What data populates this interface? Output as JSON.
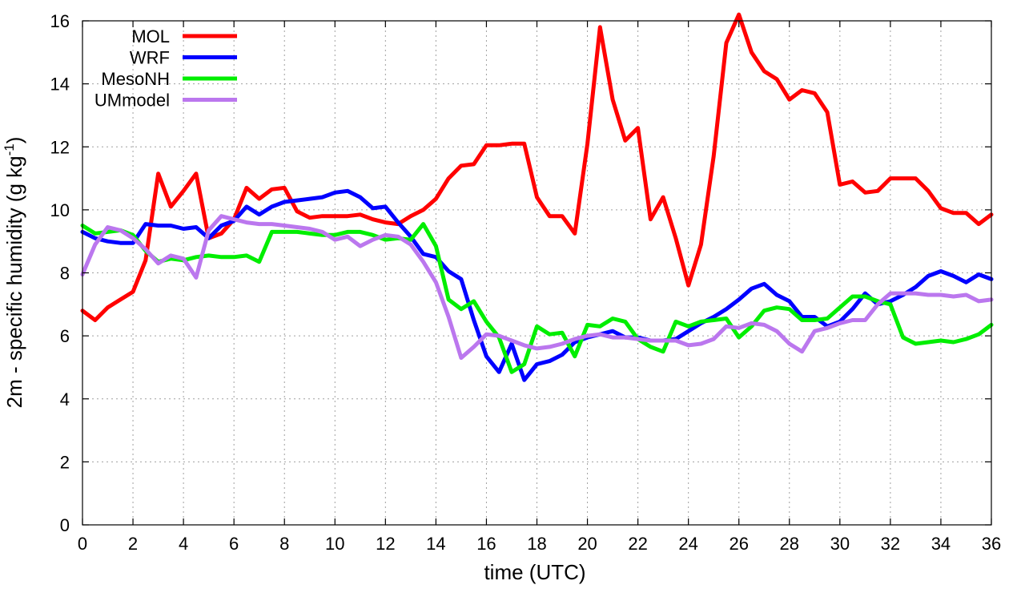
{
  "chart_data": {
    "type": "line",
    "xlabel": "time (UTC)",
    "ylabel_main": "2m - specific humidity (g kg",
    "ylabel_sup": "-1",
    "ylabel_close": ")",
    "xlim": [
      0,
      36
    ],
    "ylim": [
      0,
      16
    ],
    "xticks": [
      0,
      2,
      4,
      6,
      8,
      10,
      12,
      14,
      16,
      18,
      20,
      22,
      24,
      26,
      28,
      30,
      32,
      34,
      36
    ],
    "yticks": [
      0,
      2,
      4,
      6,
      8,
      10,
      12,
      14,
      16
    ],
    "grid": true,
    "legend_position": "top-left",
    "series": [
      {
        "name": "MOL",
        "color": "#ff0000",
        "x": [
          0,
          0.5,
          1,
          1.5,
          2,
          2.5,
          3,
          3.5,
          4,
          4.5,
          5,
          5.5,
          6,
          6.5,
          7,
          7.5,
          8,
          8.5,
          9,
          9.5,
          10,
          10.5,
          11,
          11.5,
          12,
          12.5,
          13,
          13.5,
          14,
          14.5,
          15,
          15.5,
          16,
          16.5,
          17,
          17.5,
          18,
          18.5,
          19,
          19.5,
          20,
          20.5,
          21,
          21.5,
          22,
          22.5,
          23,
          23.5,
          24,
          24.5,
          25,
          25.5,
          26,
          26.5,
          27,
          27.5,
          28,
          28.5,
          29,
          29.5,
          30,
          30.5,
          31,
          31.5,
          32,
          32.5,
          33,
          33.5,
          34,
          34.5,
          35,
          35.5,
          36
        ],
        "y": [
          6.8,
          6.5,
          6.9,
          7.15,
          7.4,
          8.4,
          11.15,
          10.1,
          10.6,
          11.15,
          9.1,
          9.25,
          9.7,
          10.7,
          10.35,
          10.65,
          10.7,
          9.95,
          9.75,
          9.8,
          9.8,
          9.8,
          9.85,
          9.7,
          9.6,
          9.55,
          9.8,
          10.0,
          10.35,
          11.0,
          11.4,
          11.45,
          12.05,
          12.05,
          12.1,
          12.1,
          10.4,
          9.8,
          9.8,
          9.25,
          12.1,
          15.8,
          13.5,
          12.2,
          12.6,
          9.7,
          10.4,
          9.1,
          7.6,
          8.9,
          11.7,
          15.3,
          16.2,
          15.0,
          14.4,
          14.15,
          13.5,
          13.8,
          13.7,
          13.1,
          10.8,
          10.9,
          10.55,
          10.6,
          11.0,
          11.0,
          11.0,
          10.6,
          10.05,
          9.9,
          9.9,
          9.55,
          9.85
        ]
      },
      {
        "name": "WRF",
        "color": "#0000ff",
        "x": [
          0,
          0.5,
          1,
          1.5,
          2,
          2.5,
          3,
          3.5,
          4,
          4.5,
          5,
          5.5,
          6,
          6.5,
          7,
          7.5,
          8,
          8.5,
          9,
          9.5,
          10,
          10.5,
          11,
          11.5,
          12,
          12.5,
          13,
          13.5,
          14,
          14.5,
          15,
          15.5,
          16,
          16.5,
          17,
          17.5,
          18,
          18.5,
          19,
          19.5,
          20,
          20.5,
          21,
          21.5,
          22,
          22.5,
          23,
          23.5,
          24,
          24.5,
          25,
          25.5,
          26,
          26.5,
          27,
          27.5,
          28,
          28.5,
          29,
          29.5,
          30,
          30.5,
          31,
          31.5,
          32,
          32.5,
          33,
          33.5,
          34,
          34.5,
          35,
          35.5,
          36
        ],
        "y": [
          9.3,
          9.1,
          9.0,
          8.95,
          8.95,
          9.55,
          9.5,
          9.5,
          9.4,
          9.45,
          9.1,
          9.5,
          9.65,
          10.1,
          9.85,
          10.1,
          10.25,
          10.3,
          10.35,
          10.4,
          10.55,
          10.6,
          10.4,
          10.05,
          10.1,
          9.6,
          9.15,
          8.6,
          8.5,
          8.05,
          7.8,
          6.5,
          5.35,
          4.85,
          5.75,
          4.6,
          5.1,
          5.2,
          5.4,
          5.8,
          5.95,
          6.05,
          6.15,
          5.95,
          5.95,
          5.85,
          5.85,
          5.9,
          6.15,
          6.4,
          6.6,
          6.85,
          7.15,
          7.5,
          7.65,
          7.3,
          7.1,
          6.6,
          6.6,
          6.3,
          6.45,
          6.85,
          7.35,
          7.0,
          7.1,
          7.3,
          7.55,
          7.9,
          8.05,
          7.9,
          7.7,
          7.95,
          7.8
        ]
      },
      {
        "name": "MesoNH",
        "color": "#00ee00",
        "x": [
          0,
          0.5,
          1,
          1.5,
          2,
          2.5,
          3,
          3.5,
          4,
          4.5,
          5,
          5.5,
          6,
          6.5,
          7,
          7.5,
          8,
          8.5,
          9,
          9.5,
          10,
          10.5,
          11,
          11.5,
          12,
          12.5,
          13,
          13.5,
          14,
          14.5,
          15,
          15.5,
          16,
          16.5,
          17,
          17.5,
          18,
          18.5,
          19,
          19.5,
          20,
          20.5,
          21,
          21.5,
          22,
          22.5,
          23,
          23.5,
          24,
          24.5,
          25,
          25.5,
          26,
          26.5,
          27,
          27.5,
          28,
          28.5,
          29,
          29.5,
          30,
          30.5,
          31,
          31.5,
          32,
          32.5,
          33,
          33.5,
          34,
          34.5,
          35,
          35.5,
          36
        ],
        "y": [
          9.5,
          9.25,
          9.3,
          9.35,
          9.2,
          8.7,
          8.35,
          8.45,
          8.4,
          8.5,
          8.55,
          8.5,
          8.5,
          8.55,
          8.35,
          9.3,
          9.3,
          9.3,
          9.25,
          9.2,
          9.2,
          9.3,
          9.3,
          9.2,
          9.05,
          9.1,
          9.05,
          9.55,
          8.85,
          7.15,
          6.85,
          7.1,
          6.45,
          5.95,
          4.85,
          5.1,
          6.3,
          6.05,
          6.1,
          5.35,
          6.35,
          6.3,
          6.55,
          6.45,
          5.9,
          5.65,
          5.5,
          6.45,
          6.3,
          6.45,
          6.5,
          6.55,
          5.95,
          6.3,
          6.8,
          6.9,
          6.85,
          6.5,
          6.5,
          6.55,
          6.9,
          7.25,
          7.25,
          7.1,
          7.0,
          5.95,
          5.75,
          5.8,
          5.85,
          5.8,
          5.9,
          6.05,
          6.35
        ]
      },
      {
        "name": "UMmodel",
        "color": "#bb77ee",
        "x": [
          0,
          0.5,
          1,
          1.5,
          2,
          2.5,
          3,
          3.5,
          4,
          4.5,
          5,
          5.5,
          6,
          6.5,
          7,
          7.5,
          8,
          8.5,
          9,
          9.5,
          10,
          10.5,
          11,
          11.5,
          12,
          12.5,
          13,
          13.5,
          14,
          14.5,
          15,
          15.5,
          16,
          16.5,
          17,
          17.5,
          18,
          18.5,
          19,
          19.5,
          20,
          20.5,
          21,
          21.5,
          22,
          22.5,
          23,
          23.5,
          24,
          24.5,
          25,
          25.5,
          26,
          26.5,
          27,
          27.5,
          28,
          28.5,
          29,
          29.5,
          30,
          30.5,
          31,
          31.5,
          32,
          32.5,
          33,
          33.5,
          34,
          34.5,
          35,
          35.5,
          36
        ],
        "y": [
          7.95,
          8.9,
          9.45,
          9.35,
          9.1,
          8.75,
          8.3,
          8.55,
          8.45,
          7.85,
          9.35,
          9.8,
          9.7,
          9.6,
          9.55,
          9.55,
          9.5,
          9.45,
          9.4,
          9.3,
          9.05,
          9.15,
          8.85,
          9.05,
          9.2,
          9.15,
          8.9,
          8.35,
          7.7,
          6.6,
          5.3,
          5.65,
          6.05,
          6.0,
          5.85,
          5.7,
          5.6,
          5.65,
          5.75,
          5.9,
          6.0,
          6.05,
          5.95,
          5.95,
          5.9,
          5.85,
          5.85,
          5.85,
          5.7,
          5.75,
          5.9,
          6.3,
          6.25,
          6.4,
          6.35,
          6.15,
          5.75,
          5.5,
          6.15,
          6.25,
          6.4,
          6.5,
          6.5,
          7.0,
          7.35,
          7.35,
          7.35,
          7.3,
          7.3,
          7.25,
          7.3,
          7.1,
          7.15
        ]
      }
    ]
  }
}
